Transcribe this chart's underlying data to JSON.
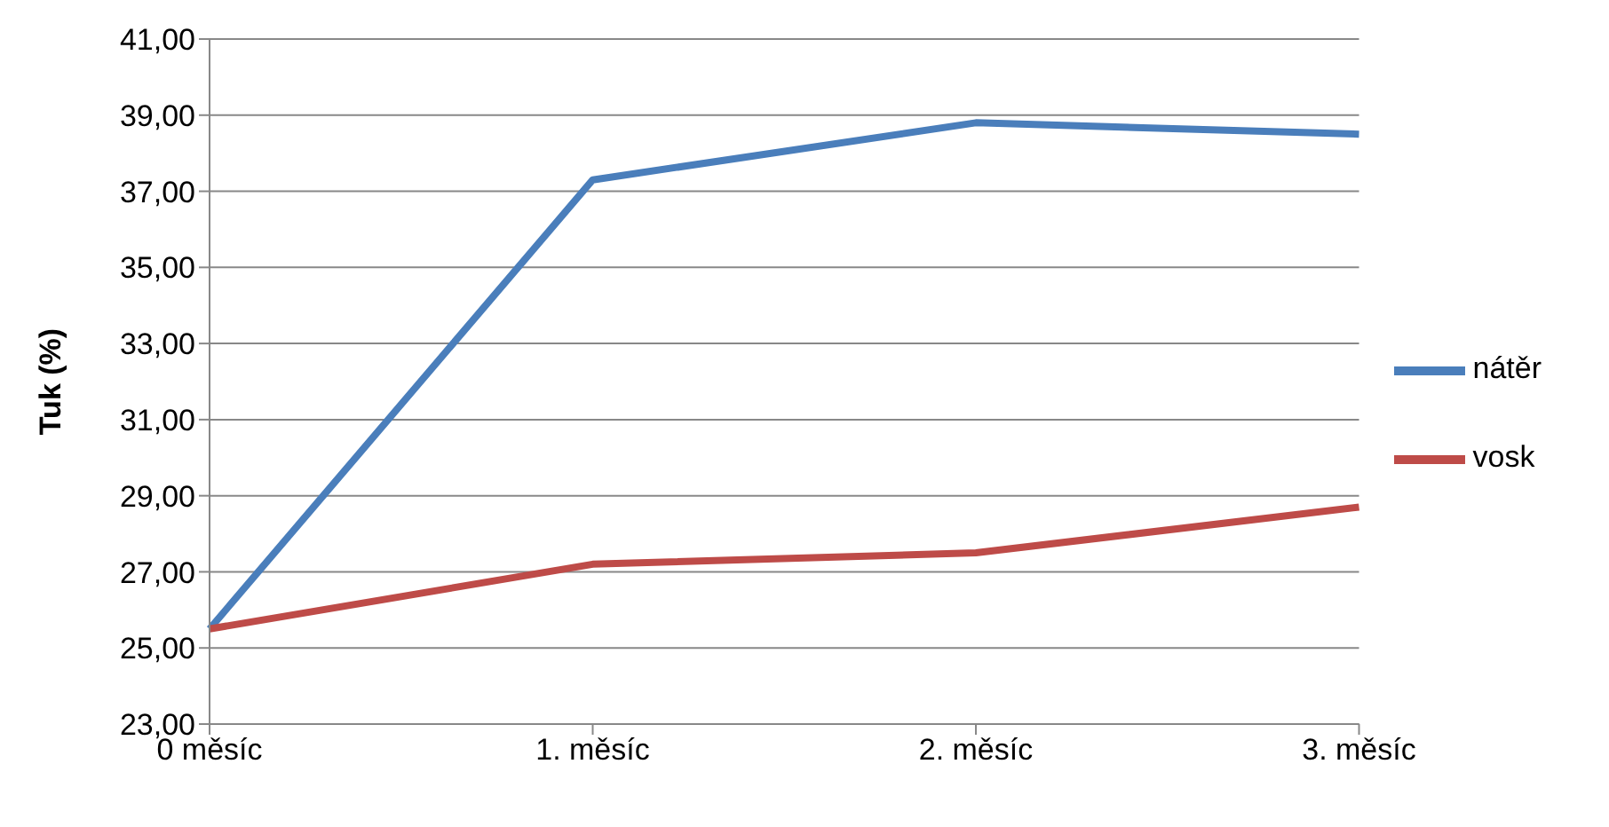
{
  "chart_data": {
    "type": "line",
    "ylabel": "Tuk (%)",
    "categories": [
      "0 měsíc",
      "1. měsíc",
      "2. měsíc",
      "3. měsíc"
    ],
    "series": [
      {
        "name": "nátěr",
        "color": "#4a7ebb",
        "values": [
          25.5,
          37.3,
          38.8,
          38.5
        ]
      },
      {
        "name": "vosk",
        "color": "#be4b48",
        "values": [
          25.5,
          27.2,
          27.5,
          28.7
        ]
      }
    ],
    "ylim": [
      23,
      41
    ],
    "yticks": [
      {
        "value": 23,
        "label": "23,00"
      },
      {
        "value": 25,
        "label": "25,00"
      },
      {
        "value": 27,
        "label": "27,00"
      },
      {
        "value": 29,
        "label": "29,00"
      },
      {
        "value": 31,
        "label": "31,00"
      },
      {
        "value": 33,
        "label": "33,00"
      },
      {
        "value": 35,
        "label": "35,00"
      },
      {
        "value": 37,
        "label": "37,00"
      },
      {
        "value": 39,
        "label": "39,00"
      },
      {
        "value": 41,
        "label": "41,00"
      }
    ],
    "grid": "y",
    "legend": "right",
    "marker": "none",
    "line_style": "solid"
  }
}
